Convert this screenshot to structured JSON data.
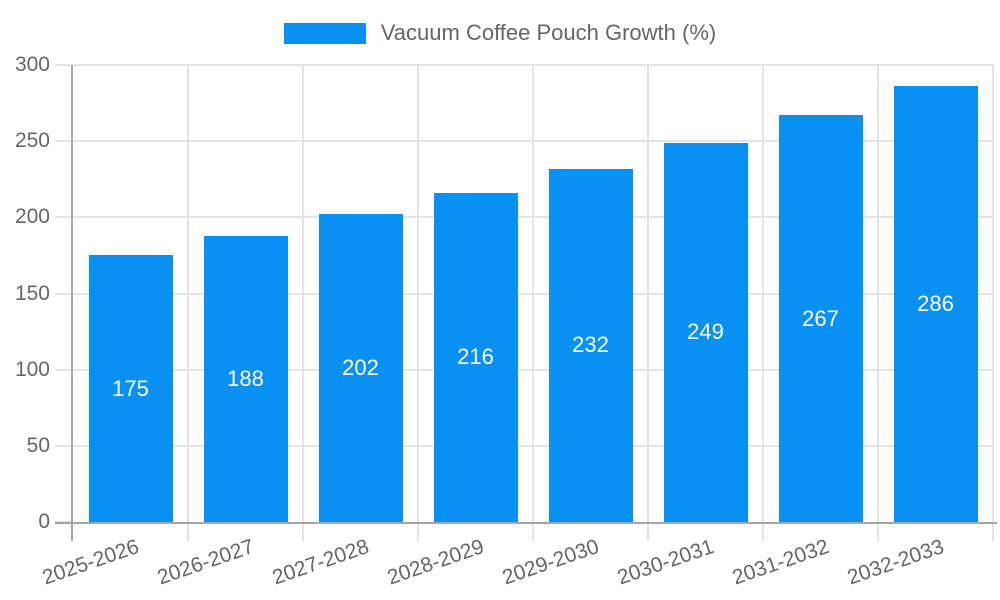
{
  "chart_data": {
    "type": "bar",
    "title": "Vacuum Coffee Pouch Growth (%)",
    "categories": [
      "2025-2026",
      "2026-2027",
      "2027-2028",
      "2028-2029",
      "2029-2030",
      "2030-2031",
      "2031-2032",
      "2032-2033"
    ],
    "values": [
      175,
      188,
      202,
      216,
      232,
      249,
      267,
      286
    ],
    "xlabel": "",
    "ylabel": "",
    "ylim": [
      0,
      300
    ],
    "yticks": [
      0,
      50,
      100,
      150,
      200,
      250,
      300
    ],
    "grid": true,
    "legend_position": "top",
    "value_label_position": "inside-center",
    "colors": {
      "bar": "#0890F2",
      "grid": "#E3E3E3",
      "axis": "#A6A6A6",
      "tick_text": "#666666",
      "legend_text": "#666666",
      "value_label": "#FFFFFF",
      "background": "#FFFFFF"
    }
  }
}
